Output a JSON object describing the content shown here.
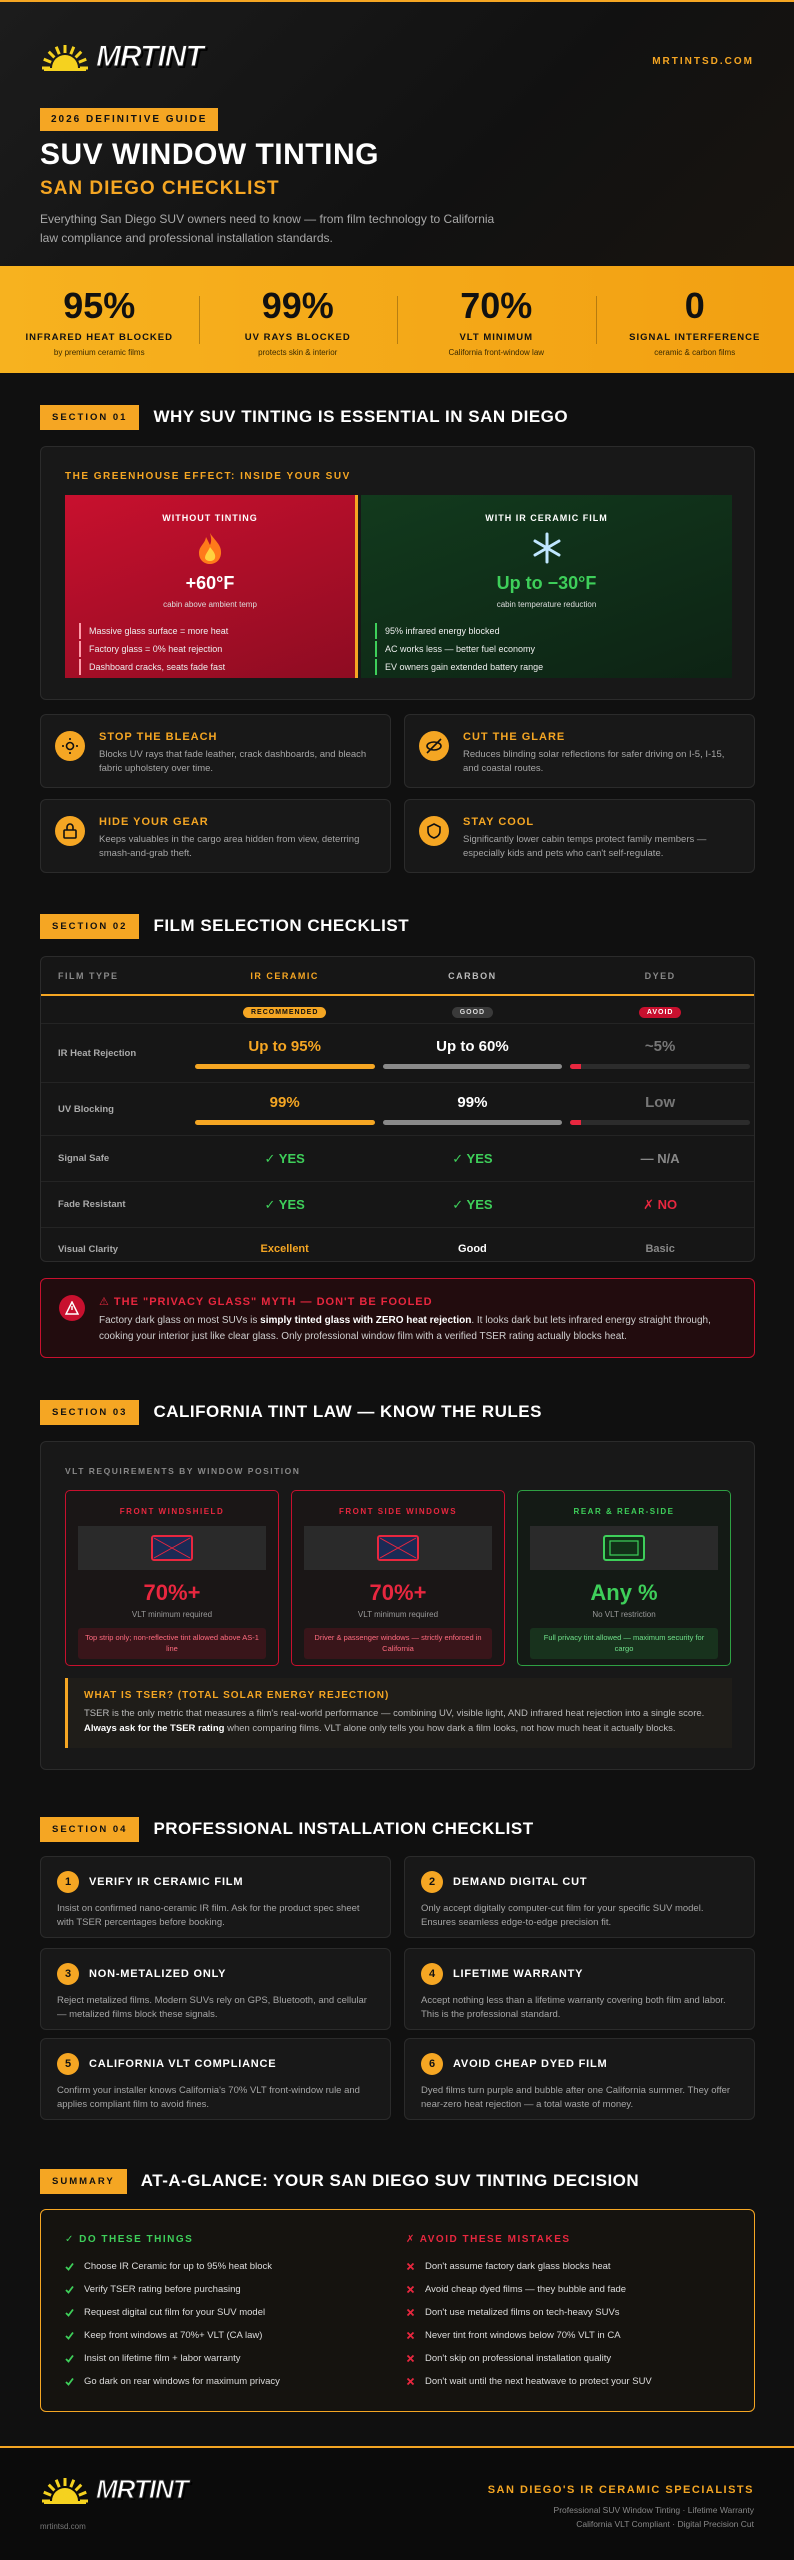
{
  "header": {
    "logo": "MRTINT",
    "site": "MRTINTSD.COM",
    "badge": "2026 DEFINITIVE GUIDE",
    "title": "SUV WINDOW TINTING",
    "subtitle": "SAN DIEGO CHECKLIST",
    "intro": "Everything San Diego SUV owners need to know — from film technology to California law compliance and professional installation standards."
  },
  "stats": [
    {
      "value": "95%",
      "label": "INFRARED HEAT BLOCKED",
      "note": "by premium ceramic films"
    },
    {
      "value": "99%",
      "label": "UV RAYS BLOCKED",
      "note": "protects skin & interior"
    },
    {
      "value": "70%",
      "label": "VLT MINIMUM",
      "note": "California front-window law"
    },
    {
      "value": "0",
      "label": "SIGNAL INTERFERENCE",
      "note": "ceramic & carbon films"
    }
  ],
  "section1": {
    "tag": "SECTION 01",
    "title": "WHY SUV TINTING IS ESSENTIAL IN SAN DIEGO",
    "panel_title": "THE GREENHOUSE EFFECT: INSIDE YOUR SUV",
    "without": {
      "heading": "WITHOUT TINTING",
      "value": "+60°F",
      "caption": "cabin above ambient temp",
      "points": [
        "Massive glass surface = more heat",
        "Factory glass = 0% heat rejection",
        "Dashboard cracks, seats fade fast"
      ]
    },
    "with": {
      "heading": "WITH IR CERAMIC FILM",
      "value": "Up to −30°F",
      "caption": "cabin temperature reduction",
      "points": [
        "95% infrared energy blocked",
        "AC works less — better fuel economy",
        "EV owners gain extended battery range"
      ]
    },
    "features": [
      {
        "title": "STOP THE BLEACH",
        "text": "Blocks UV rays that fade leather, crack dashboards, and bleach fabric upholstery over time."
      },
      {
        "title": "CUT THE GLARE",
        "text": "Reduces blinding solar reflections for safer driving on I-5, I-15, and coastal routes."
      },
      {
        "title": "HIDE YOUR GEAR",
        "text": "Keeps valuables in the cargo area hidden from view, deterring smash-and-grab theft."
      },
      {
        "title": "STAY COOL",
        "text": "Significantly lower cabin temps protect family members — especially kids and pets who can't self-regulate."
      }
    ]
  },
  "section2": {
    "tag": "SECTION 02",
    "title": "FILM SELECTION CHECKLIST",
    "table": {
      "header": [
        "FILM TYPE",
        "IR CERAMIC",
        "CARBON",
        "DYED"
      ],
      "badges": [
        "RECOMMENDED",
        "GOOD",
        "AVOID"
      ],
      "rows": [
        [
          "IR Heat Rejection",
          "Up to 95%",
          "Up to 60%",
          "~5%"
        ],
        [
          "UV Blocking",
          "99%",
          "99%",
          "Low"
        ],
        [
          "Signal Safe",
          "✓ YES",
          "✓ YES",
          "— N/A"
        ],
        [
          "Fade Resistant",
          "✓ YES",
          "✓ YES",
          "✗ NO"
        ],
        [
          "Visual Clarity",
          "Excellent",
          "Good",
          "Basic"
        ]
      ]
    },
    "myth": {
      "title": "⚠ THE \"PRIVACY GLASS\" MYTH — DON'T BE FOOLED",
      "before": "Factory dark glass on most SUVs is ",
      "bold": "simply tinted glass with ZERO heat rejection",
      "after": ". It looks dark but lets infrared energy straight through, cooking your interior just like clear glass. Only professional window film with a verified TSER rating actually blocks heat."
    }
  },
  "section3": {
    "tag": "SECTION 03",
    "title": "CALIFORNIA TINT LAW — KNOW THE RULES",
    "panel_title": "VLT REQUIREMENTS BY WINDOW POSITION",
    "windows": [
      {
        "name": "FRONT WINDSHIELD",
        "value": "70%+",
        "caption": "VLT minimum required",
        "note": "Top strip only; non-reflective tint allowed above AS-1 line"
      },
      {
        "name": "FRONT SIDE WINDOWS",
        "value": "70%+",
        "caption": "VLT minimum required",
        "note": "Driver & passenger windows — strictly enforced in California"
      },
      {
        "name": "REAR & REAR-SIDE",
        "value": "Any %",
        "caption": "No VLT restriction",
        "note": "Full privacy tint allowed — maximum security for cargo"
      }
    ],
    "tser": {
      "title": "WHAT IS TSER? (TOTAL SOLAR ENERGY REJECTION)",
      "before": "TSER is the only metric that measures a film's real-world performance — combining UV, visible light, AND infrared heat rejection into a single score. ",
      "bold": "Always ask for the TSER rating",
      "after": " when comparing films. VLT alone only tells you how dark a film looks, not how much heat it actually blocks."
    }
  },
  "section4": {
    "tag": "SECTION 04",
    "title": "PROFESSIONAL INSTALLATION CHECKLIST",
    "items": [
      {
        "number": "1",
        "title": "VERIFY IR CERAMIC FILM",
        "text": "Insist on confirmed nano-ceramic IR film. Ask for the product spec sheet with TSER percentages before booking."
      },
      {
        "number": "2",
        "title": "DEMAND DIGITAL CUT",
        "text": "Only accept digitally computer-cut film for your specific SUV model. Ensures seamless edge-to-edge precision fit."
      },
      {
        "number": "3",
        "title": "NON-METALIZED ONLY",
        "text": "Reject metalized films. Modern SUVs rely on GPS, Bluetooth, and cellular — metalized films block these signals."
      },
      {
        "number": "4",
        "title": "LIFETIME WARRANTY",
        "text": "Accept nothing less than a lifetime warranty covering both film and labor. This is the professional standard."
      },
      {
        "number": "5",
        "title": "CALIFORNIA VLT COMPLIANCE",
        "text": "Confirm your installer knows California's 70% VLT front-window rule and applies compliant film to avoid fines."
      },
      {
        "number": "6",
        "title": "AVOID CHEAP DYED FILM",
        "text": "Dyed films turn purple and bubble after one California summer. They offer near-zero heat rejection — a total waste of money."
      }
    ]
  },
  "summary": {
    "tag": "SUMMARY",
    "title": "AT-A-GLANCE: YOUR SAN DIEGO SUV TINTING DECISION",
    "do_title": "✓ DO THESE THINGS",
    "do": [
      "Choose IR Ceramic for up to 95% heat block",
      "Verify TSER rating before purchasing",
      "Request digital cut film for your SUV model",
      "Keep front windows at 70%+ VLT (CA law)",
      "Insist on lifetime film + labor warranty",
      "Go dark on rear windows for maximum privacy"
    ],
    "avoid_title": "✗ AVOID THESE MISTAKES",
    "avoid": [
      "Don't assume factory dark glass blocks heat",
      "Avoid cheap dyed films — they bubble and fade",
      "Don't use metalized films on tech-heavy SUVs",
      "Never tint front windows below 70% VLT in CA",
      "Don't skip on professional installation quality",
      "Don't wait until the next heatwave to protect your SUV"
    ]
  },
  "footer": {
    "logo": "MRTINT",
    "site": "mrtintsd.com",
    "tagline": "SAN DIEGO'S IR CERAMIC SPECIALISTS",
    "line1": "Professional SUV Window Tinting · Lifetime Warranty",
    "line2": "California VLT Compliant · Digital Precision Cut"
  }
}
